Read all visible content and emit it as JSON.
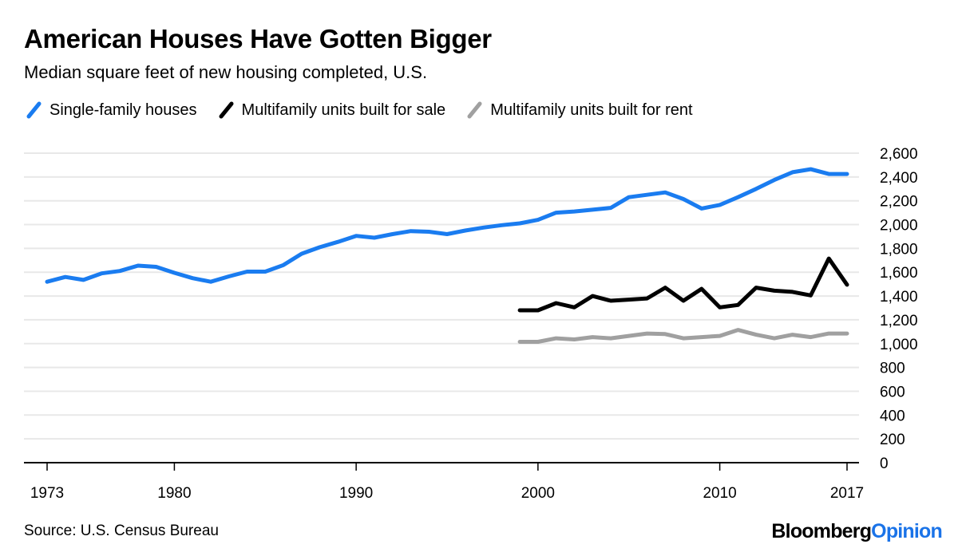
{
  "header": {
    "title": "American Houses Have Gotten Bigger",
    "subtitle": "Median square feet of new housing completed, U.S."
  },
  "legend": [
    {
      "label": "Single-family houses",
      "color": "#1a7cf0"
    },
    {
      "label": "Multifamily units built for sale",
      "color": "#000000"
    },
    {
      "label": "Multifamily units built for rent",
      "color": "#a0a0a0"
    }
  ],
  "footer": {
    "source": "Source: U.S. Census Bureau",
    "logo_primary": "Bloomberg",
    "logo_secondary": "Opinion"
  },
  "chart_data": {
    "type": "line",
    "title": "American Houses Have Gotten Bigger",
    "subtitle": "Median square feet of new housing completed, U.S.",
    "xlabel": "",
    "ylabel": "",
    "xlim": [
      1973,
      2017
    ],
    "ylim": [
      0,
      2600
    ],
    "x_ticks": [
      1973,
      1980,
      1990,
      2000,
      2010,
      2017
    ],
    "y_ticks": [
      0,
      200,
      400,
      600,
      800,
      "1,000",
      "1,200",
      "1,400",
      "1,600",
      "1,800",
      "2,000",
      "2,200",
      "2,400",
      "2,600"
    ],
    "y_tick_values": [
      0,
      200,
      400,
      600,
      800,
      1000,
      1200,
      1400,
      1600,
      1800,
      2000,
      2200,
      2400,
      2600
    ],
    "y_axis_position": "right",
    "grid": true,
    "legend_position": "top-left",
    "series": [
      {
        "name": "Single-family houses",
        "color": "#1a7cf0",
        "x": [
          1973,
          1974,
          1975,
          1976,
          1977,
          1978,
          1979,
          1980,
          1981,
          1982,
          1983,
          1984,
          1985,
          1986,
          1987,
          1988,
          1989,
          1990,
          1991,
          1992,
          1993,
          1994,
          1995,
          1996,
          1997,
          1998,
          1999,
          2000,
          2001,
          2002,
          2003,
          2004,
          2005,
          2006,
          2007,
          2008,
          2009,
          2010,
          2011,
          2012,
          2013,
          2014,
          2015,
          2016,
          2017
        ],
        "values": [
          1520,
          1560,
          1535,
          1590,
          1610,
          1655,
          1645,
          1595,
          1550,
          1520,
          1565,
          1605,
          1605,
          1660,
          1755,
          1810,
          1855,
          1905,
          1890,
          1920,
          1945,
          1940,
          1920,
          1950,
          1975,
          1995,
          2010,
          2040,
          2100,
          2110,
          2125,
          2140,
          2230,
          2250,
          2270,
          2215,
          2135,
          2165,
          2230,
          2300,
          2375,
          2440,
          2465,
          2425,
          2425
        ]
      },
      {
        "name": "Multifamily units built for sale",
        "color": "#000000",
        "x": [
          1999,
          2000,
          2001,
          2002,
          2003,
          2004,
          2005,
          2006,
          2007,
          2008,
          2009,
          2010,
          2011,
          2012,
          2013,
          2014,
          2015,
          2016,
          2017
        ],
        "values": [
          1280,
          1280,
          1340,
          1305,
          1400,
          1360,
          1370,
          1380,
          1470,
          1360,
          1460,
          1305,
          1325,
          1470,
          1445,
          1435,
          1405,
          1715,
          1495
        ]
      },
      {
        "name": "Multifamily units built for rent",
        "color": "#a0a0a0",
        "x": [
          1999,
          2000,
          2001,
          2002,
          2003,
          2004,
          2005,
          2006,
          2007,
          2008,
          2009,
          2010,
          2011,
          2012,
          2013,
          2014,
          2015,
          2016,
          2017
        ],
        "values": [
          1015,
          1015,
          1045,
          1035,
          1055,
          1045,
          1065,
          1085,
          1080,
          1045,
          1055,
          1065,
          1115,
          1075,
          1045,
          1075,
          1055,
          1085,
          1085
        ]
      }
    ]
  }
}
